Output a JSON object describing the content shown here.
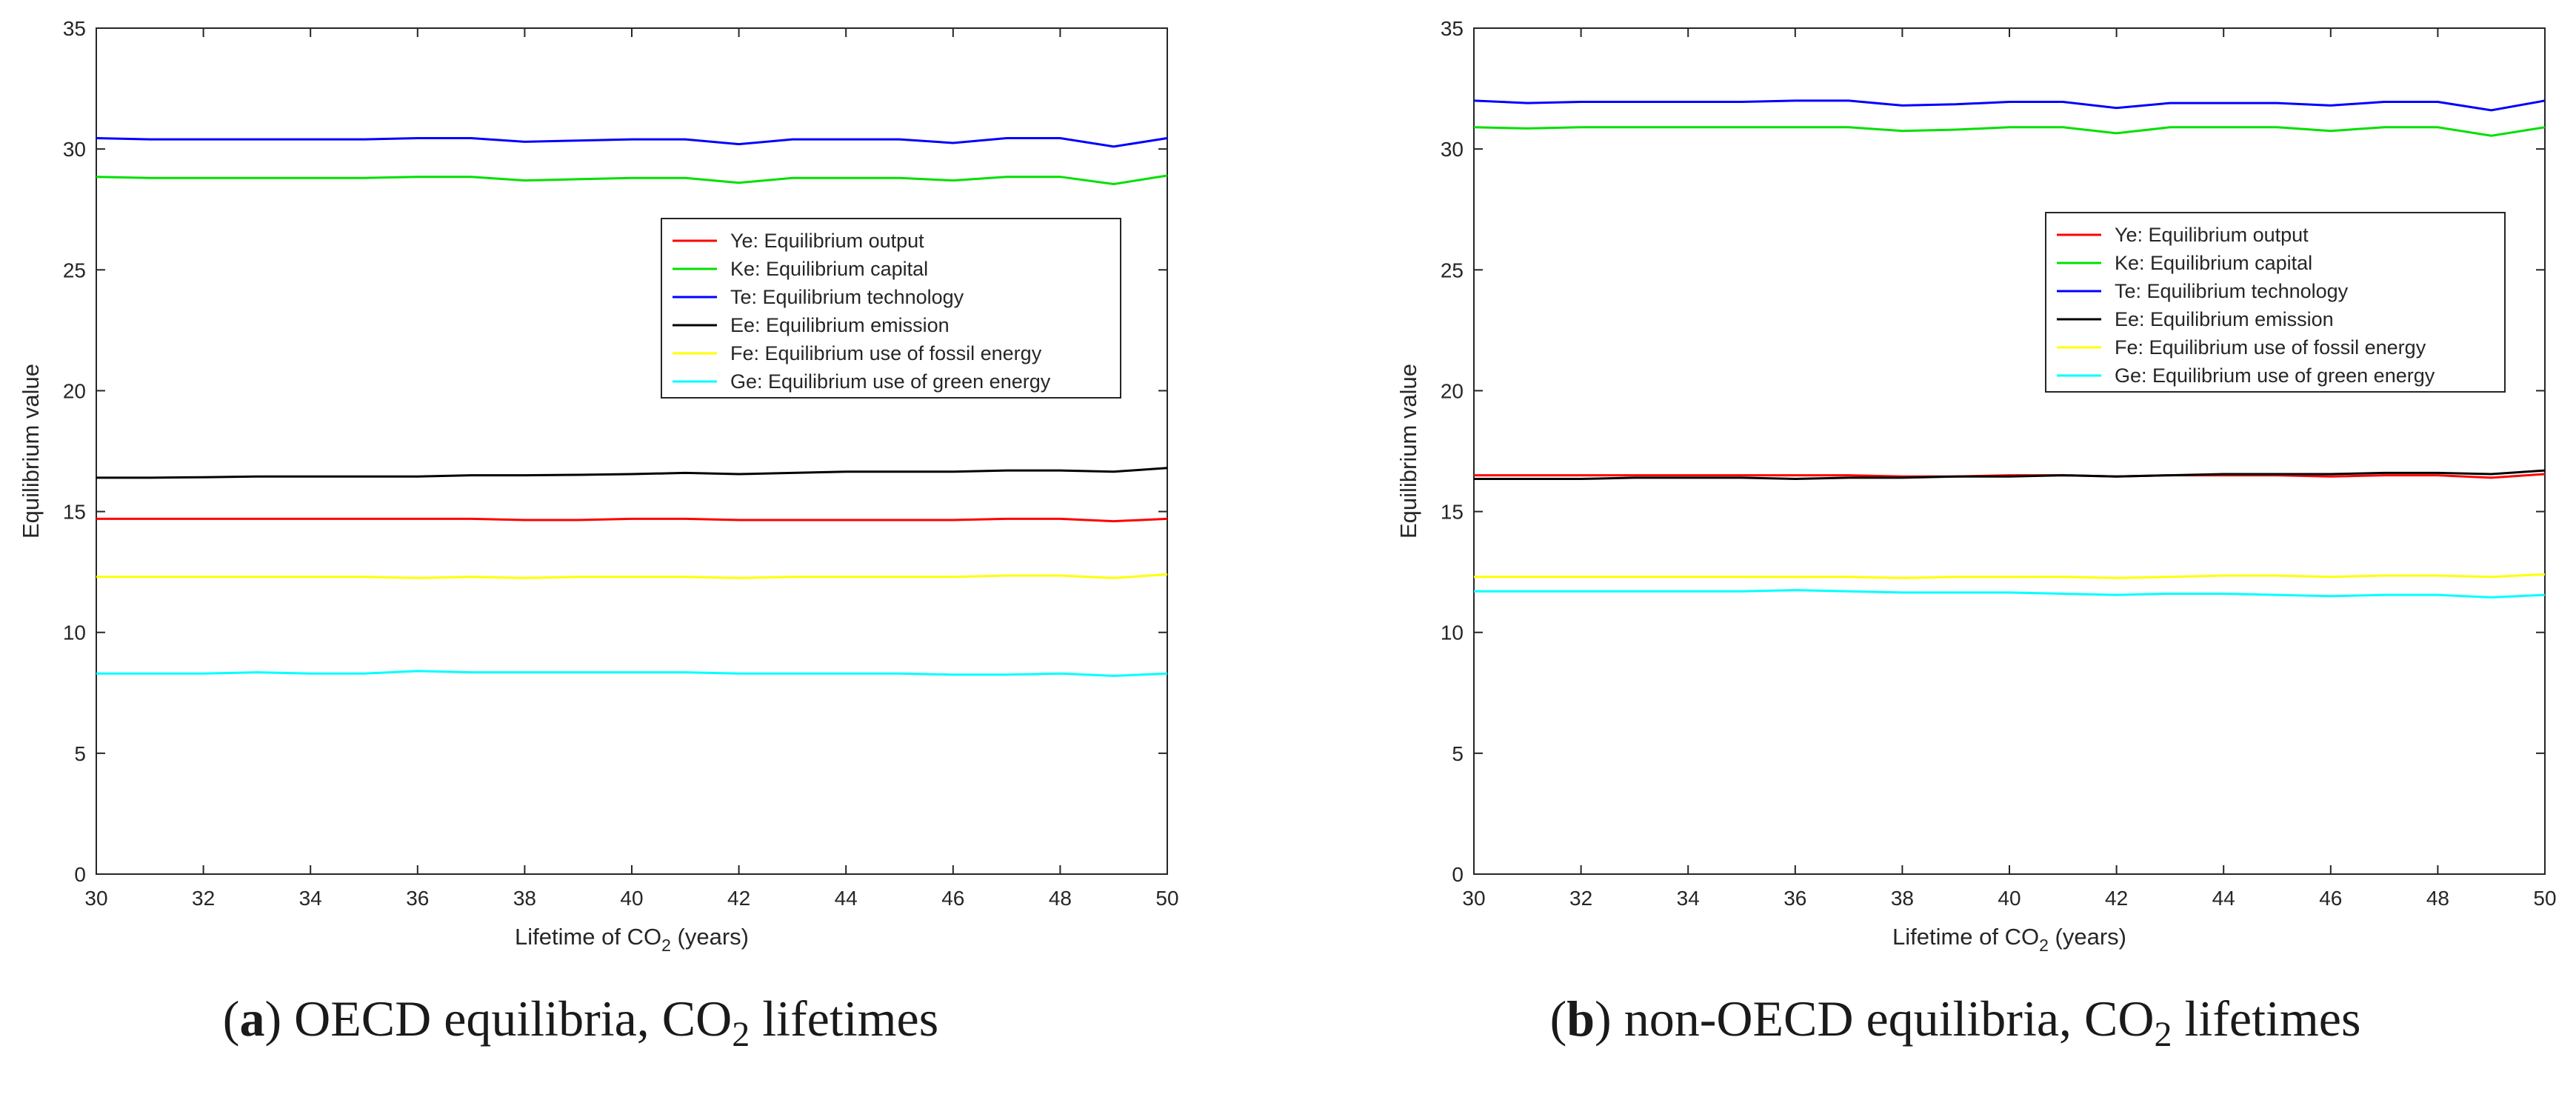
{
  "chart_data": [
    {
      "type": "line",
      "panel": "a",
      "caption": {
        "letter": "a",
        "text_before": ") OECD equilibria, CO",
        "subscript": "2",
        "text_after": " lifetimes"
      },
      "xlabel": {
        "before": "Lifetime of CO",
        "sub": "2",
        "after": " (years)"
      },
      "ylabel": "Equilibrium value",
      "xlim": [
        30,
        50
      ],
      "ylim": [
        0,
        35
      ],
      "xticks": [
        "30",
        "32",
        "34",
        "36",
        "38",
        "40",
        "42",
        "44",
        "46",
        "48",
        "50"
      ],
      "yticks": [
        "0",
        "5",
        "10",
        "15",
        "20",
        "25",
        "30",
        "35"
      ],
      "legend_position": "upper-right-inside",
      "x": [
        30,
        31,
        32,
        33,
        34,
        35,
        36,
        37,
        38,
        39,
        40,
        41,
        42,
        43,
        44,
        45,
        46,
        47,
        48,
        49,
        50
      ],
      "series": [
        {
          "name": "Ye: Equilibrium output",
          "color": "#ff0000",
          "values": [
            14.7,
            14.7,
            14.7,
            14.7,
            14.7,
            14.7,
            14.7,
            14.7,
            14.65,
            14.65,
            14.7,
            14.7,
            14.65,
            14.65,
            14.65,
            14.65,
            14.65,
            14.7,
            14.7,
            14.6,
            14.7
          ]
        },
        {
          "name": "Ke: Equilibrium capital",
          "color": "#00e000",
          "values": [
            28.85,
            28.8,
            28.8,
            28.8,
            28.8,
            28.8,
            28.85,
            28.85,
            28.7,
            28.75,
            28.8,
            28.8,
            28.6,
            28.8,
            28.8,
            28.8,
            28.7,
            28.85,
            28.85,
            28.55,
            28.9
          ]
        },
        {
          "name": "Te: Equilibrium technology",
          "color": "#0000ff",
          "values": [
            30.45,
            30.4,
            30.4,
            30.4,
            30.4,
            30.4,
            30.45,
            30.45,
            30.3,
            30.35,
            30.4,
            30.4,
            30.2,
            30.4,
            30.4,
            30.4,
            30.25,
            30.45,
            30.45,
            30.1,
            30.45
          ]
        },
        {
          "name": "Ee: Equilibrium emission",
          "color": "#000000",
          "values": [
            16.4,
            16.4,
            16.42,
            16.45,
            16.45,
            16.45,
            16.45,
            16.5,
            16.5,
            16.52,
            16.55,
            16.6,
            16.55,
            16.6,
            16.65,
            16.65,
            16.65,
            16.7,
            16.7,
            16.65,
            16.8
          ]
        },
        {
          "name": "Fe: Equilibrium use of fossil energy",
          "color": "#ffff00",
          "values": [
            12.3,
            12.3,
            12.3,
            12.3,
            12.3,
            12.3,
            12.25,
            12.3,
            12.25,
            12.3,
            12.3,
            12.3,
            12.25,
            12.3,
            12.3,
            12.3,
            12.3,
            12.35,
            12.35,
            12.25,
            12.4
          ]
        },
        {
          "name": "Ge: Equilibrium use of green energy",
          "color": "#00ffff",
          "values": [
            8.3,
            8.3,
            8.3,
            8.35,
            8.3,
            8.3,
            8.4,
            8.35,
            8.35,
            8.35,
            8.35,
            8.35,
            8.3,
            8.3,
            8.3,
            8.3,
            8.25,
            8.25,
            8.3,
            8.2,
            8.3
          ]
        }
      ]
    },
    {
      "type": "line",
      "panel": "b",
      "caption": {
        "letter": "b",
        "text_before": ") non-OECD equilibria, CO",
        "subscript": "2",
        "text_after": " lifetimes"
      },
      "xlabel": {
        "before": "Lifetime of CO",
        "sub": "2",
        "after": " (years)"
      },
      "ylabel": "Equilibrium value",
      "xlim": [
        30,
        50
      ],
      "ylim": [
        0,
        35
      ],
      "xticks": [
        "30",
        "32",
        "34",
        "36",
        "38",
        "40",
        "42",
        "44",
        "46",
        "48",
        "50"
      ],
      "yticks": [
        "0",
        "5",
        "10",
        "15",
        "20",
        "25",
        "30",
        "35"
      ],
      "legend_position": "upper-right-inside",
      "x": [
        30,
        31,
        32,
        33,
        34,
        35,
        36,
        37,
        38,
        39,
        40,
        41,
        42,
        43,
        44,
        45,
        46,
        47,
        48,
        49,
        50
      ],
      "series": [
        {
          "name": "Ye: Equilibrium output",
          "color": "#ff0000",
          "values": [
            16.5,
            16.5,
            16.5,
            16.5,
            16.5,
            16.5,
            16.5,
            16.5,
            16.45,
            16.45,
            16.5,
            16.5,
            16.45,
            16.5,
            16.5,
            16.5,
            16.45,
            16.5,
            16.5,
            16.4,
            16.55
          ]
        },
        {
          "name": "Ke: Equilibrium capital",
          "color": "#00e000",
          "values": [
            30.9,
            30.85,
            30.9,
            30.9,
            30.9,
            30.9,
            30.9,
            30.9,
            30.75,
            30.8,
            30.9,
            30.9,
            30.65,
            30.9,
            30.9,
            30.9,
            30.75,
            30.9,
            30.9,
            30.55,
            30.9
          ]
        },
        {
          "name": "Te: Equilibrium technology",
          "color": "#0000ff",
          "values": [
            32.0,
            31.9,
            31.95,
            31.95,
            31.95,
            31.95,
            32.0,
            32.0,
            31.8,
            31.85,
            31.95,
            31.95,
            31.7,
            31.9,
            31.9,
            31.9,
            31.8,
            31.95,
            31.95,
            31.6,
            32.0
          ]
        },
        {
          "name": "Ee: Equilibrium emission",
          "color": "#000000",
          "values": [
            16.35,
            16.35,
            16.35,
            16.4,
            16.4,
            16.4,
            16.35,
            16.4,
            16.4,
            16.45,
            16.45,
            16.5,
            16.45,
            16.5,
            16.55,
            16.55,
            16.55,
            16.6,
            16.6,
            16.55,
            16.7
          ]
        },
        {
          "name": "Fe: Equilibrium use of fossil energy",
          "color": "#ffff00",
          "values": [
            12.3,
            12.3,
            12.3,
            12.3,
            12.3,
            12.3,
            12.3,
            12.3,
            12.25,
            12.3,
            12.3,
            12.3,
            12.25,
            12.3,
            12.35,
            12.35,
            12.3,
            12.35,
            12.35,
            12.3,
            12.4
          ]
        },
        {
          "name": "Ge: Equilibrium use of green energy",
          "color": "#00ffff",
          "values": [
            11.7,
            11.7,
            11.7,
            11.7,
            11.7,
            11.7,
            11.75,
            11.7,
            11.65,
            11.65,
            11.65,
            11.6,
            11.55,
            11.6,
            11.6,
            11.55,
            11.5,
            11.55,
            11.55,
            11.45,
            11.55
          ]
        }
      ]
    }
  ]
}
